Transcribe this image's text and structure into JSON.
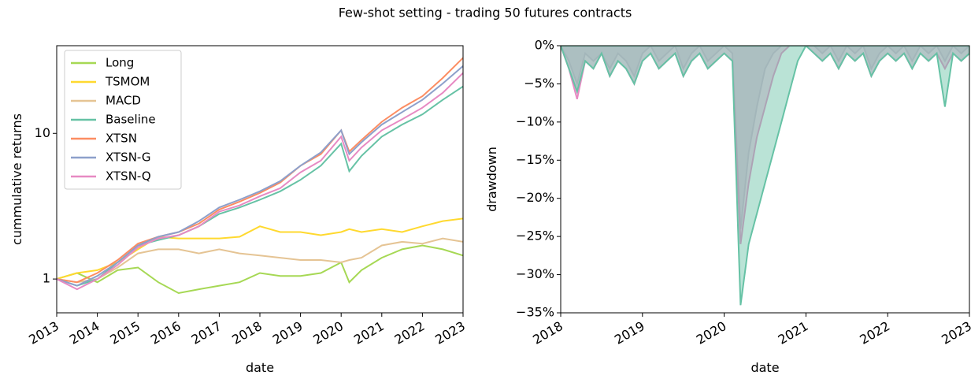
{
  "title": "Few-shot setting - trading 50 futures contracts",
  "chart_data": [
    {
      "type": "line",
      "xlabel": "date",
      "ylabel": "cummulative returns",
      "x": [
        2013,
        2013.5,
        2014,
        2014.5,
        2015,
        2015.5,
        2016,
        2016.5,
        2017,
        2017.5,
        2018,
        2018.5,
        2019,
        2019.5,
        2020,
        2020.2,
        2020.5,
        2021,
        2021.5,
        2022,
        2022.5,
        2023
      ],
      "xlim": [
        2013,
        2023
      ],
      "xticks": [
        2013,
        2014,
        2015,
        2016,
        2017,
        2018,
        2019,
        2020,
        2021,
        2022,
        2023
      ],
      "ylim": [
        0.586,
        40
      ],
      "yticks": [
        1,
        10
      ],
      "log_y": true,
      "legend": "upper left",
      "series": [
        {
          "name": "Long",
          "color": "#a6d854",
          "values": [
            1,
            1.1,
            0.95,
            1.15,
            1.2,
            0.95,
            0.8,
            0.85,
            0.9,
            0.95,
            1.1,
            1.05,
            1.05,
            1.1,
            1.3,
            0.95,
            1.15,
            1.4,
            1.6,
            1.7,
            1.6,
            1.45
          ]
        },
        {
          "name": "TSMOM",
          "color": "#ffd92f",
          "values": [
            1,
            1.1,
            1.15,
            1.3,
            1.6,
            1.95,
            1.9,
            1.9,
            1.9,
            1.95,
            2.3,
            2.1,
            2.1,
            2.0,
            2.1,
            2.2,
            2.1,
            2.2,
            2.1,
            2.3,
            2.5,
            2.6
          ]
        },
        {
          "name": "MACD",
          "color": "#e5c494",
          "values": [
            1,
            0.95,
            1.0,
            1.2,
            1.5,
            1.6,
            1.6,
            1.5,
            1.6,
            1.5,
            1.45,
            1.4,
            1.35,
            1.35,
            1.3,
            1.35,
            1.4,
            1.7,
            1.8,
            1.75,
            1.9,
            1.8
          ]
        },
        {
          "name": "Baseline",
          "color": "#66c2a5",
          "values": [
            1,
            0.9,
            1.0,
            1.3,
            1.7,
            1.85,
            2.0,
            2.3,
            2.8,
            3.1,
            3.5,
            4.0,
            4.8,
            6.0,
            8.5,
            5.5,
            7.0,
            9.5,
            11.5,
            13.5,
            17,
            21
          ]
        },
        {
          "name": "XTSN",
          "color": "#fc8d62",
          "values": [
            1,
            0.95,
            1.1,
            1.35,
            1.75,
            1.95,
            2.1,
            2.4,
            3.0,
            3.4,
            3.9,
            4.6,
            6.0,
            7.2,
            10.5,
            7.5,
            9.0,
            12,
            15,
            18,
            24,
            33
          ]
        },
        {
          "name": "XTSN-G",
          "color": "#8da0cb",
          "values": [
            1,
            0.9,
            1.05,
            1.3,
            1.7,
            1.95,
            2.1,
            2.5,
            3.1,
            3.5,
            4.0,
            4.7,
            6.0,
            7.4,
            10.5,
            7.2,
            8.7,
            11.5,
            14,
            17,
            22,
            29
          ]
        },
        {
          "name": "XTSN-Q",
          "color": "#e78ac3",
          "values": [
            1,
            0.85,
            1.0,
            1.25,
            1.65,
            1.9,
            2.0,
            2.3,
            2.9,
            3.2,
            3.7,
            4.2,
            5.4,
            6.5,
            9.5,
            6.5,
            8.0,
            10.5,
            12.5,
            15,
            19,
            26
          ]
        }
      ]
    },
    {
      "type": "area",
      "xlabel": "date",
      "ylabel": "drawdown",
      "x": [
        2018,
        2018.1,
        2018.2,
        2018.3,
        2018.4,
        2018.5,
        2018.6,
        2018.7,
        2018.8,
        2018.9,
        2019,
        2019.1,
        2019.2,
        2019.3,
        2019.4,
        2019.5,
        2019.6,
        2019.7,
        2019.8,
        2019.9,
        2020,
        2020.1,
        2020.2,
        2020.3,
        2020.4,
        2020.5,
        2020.6,
        2020.7,
        2020.8,
        2020.9,
        2021,
        2021.1,
        2021.2,
        2021.3,
        2021.4,
        2021.5,
        2021.6,
        2021.7,
        2021.8,
        2021.9,
        2022,
        2022.1,
        2022.2,
        2022.3,
        2022.4,
        2022.5,
        2022.6,
        2022.7,
        2022.8,
        2022.9,
        2023
      ],
      "xlim": [
        2018,
        2023
      ],
      "xticks": [
        2018,
        2019,
        2020,
        2021,
        2022,
        2023
      ],
      "ylim": [
        -35,
        0
      ],
      "yticks": [
        {
          "value": -35,
          "label": "−35%"
        },
        {
          "value": -30,
          "label": "−30%"
        },
        {
          "value": -25,
          "label": "−25%"
        },
        {
          "value": -20,
          "label": "−20%"
        },
        {
          "value": -15,
          "label": "−15%"
        },
        {
          "value": -10,
          "label": "−10%"
        },
        {
          "value": -5,
          "label": "−5%"
        },
        {
          "value": 0,
          "label": "0%"
        }
      ],
      "series": [
        {
          "color": "#c8ccd4",
          "values": [
            0,
            -2,
            -5,
            -1,
            -2,
            -1,
            -3,
            -1,
            -2,
            -4,
            -1,
            0,
            -2,
            -1,
            0,
            -3,
            -1,
            0,
            -2,
            -1,
            0,
            -1,
            -24,
            -14,
            -8,
            -3,
            -1,
            0,
            0,
            0,
            0,
            0,
            -1,
            0,
            -2,
            0,
            -1,
            0,
            -3,
            -1,
            0,
            -1,
            0,
            -2,
            0,
            -1,
            0,
            -2,
            0,
            -1,
            0
          ]
        },
        {
          "color": "#e78ac3",
          "values": [
            0,
            -3,
            -7,
            -2,
            -3,
            -1,
            -4,
            -2,
            -3,
            -5,
            -2,
            -1,
            -3,
            -2,
            -1,
            -4,
            -2,
            -1,
            -3,
            -2,
            -1,
            -2,
            -26,
            -18,
            -12,
            -8,
            -4,
            -1,
            0,
            0,
            0,
            -1,
            -2,
            -1,
            -3,
            -1,
            -2,
            -1,
            -4,
            -2,
            -1,
            -2,
            -1,
            -3,
            -1,
            -2,
            -1,
            -3,
            -1,
            -2,
            -1
          ]
        },
        {
          "color": "#66c2a5",
          "values": [
            0,
            -3,
            -6,
            -2,
            -3,
            -1,
            -4,
            -2,
            -3,
            -5,
            -2,
            -1,
            -3,
            -2,
            -1,
            -4,
            -2,
            -1,
            -3,
            -2,
            -1,
            -2,
            -34,
            -26,
            -22,
            -18,
            -14,
            -10,
            -6,
            -2,
            0,
            -1,
            -2,
            -1,
            -3,
            -1,
            -2,
            -1,
            -4,
            -2,
            -1,
            -2,
            -1,
            -3,
            -1,
            -2,
            -1,
            -8,
            -1,
            -2,
            -1
          ]
        }
      ]
    }
  ]
}
